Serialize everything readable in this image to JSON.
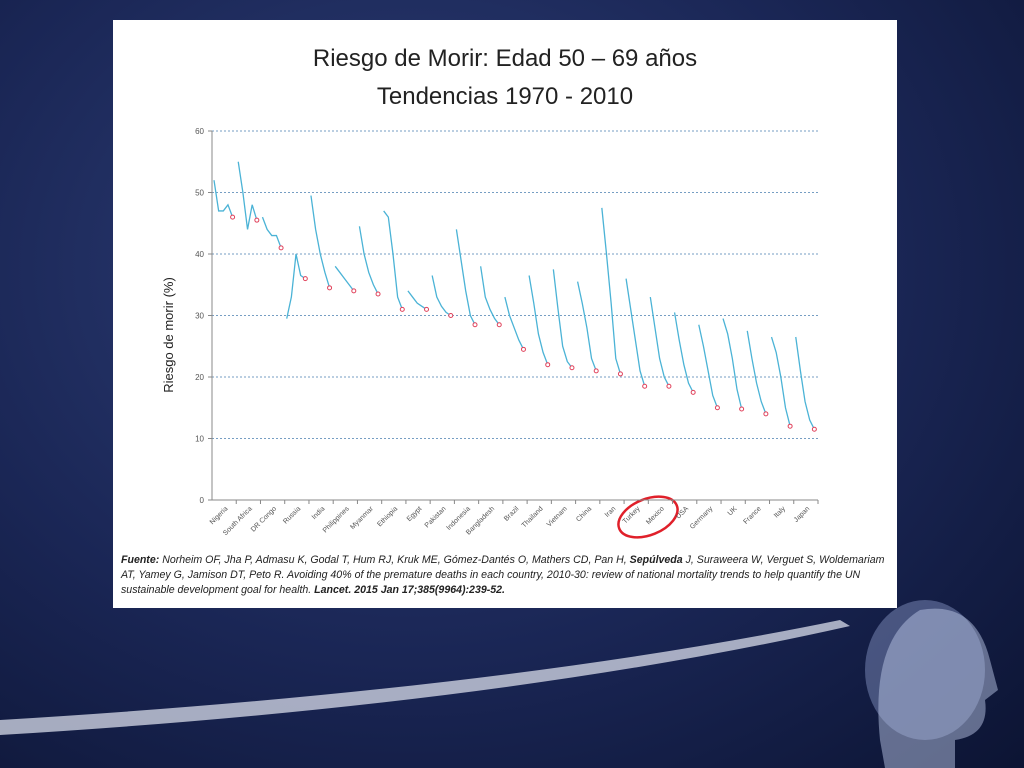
{
  "chart_data": {
    "type": "line",
    "title": "Riesgo de Morir: Edad 50 – 69 años",
    "subtitle": "Tendencias 1970 - 2010",
    "y_label": "Riesgo de morir (%)",
    "ylim": [
      0,
      60
    ],
    "yticks": [
      0,
      10,
      20,
      30,
      40,
      50,
      60
    ],
    "grid": true,
    "color": "#4bb3d6",
    "marker_color": "#e0405a",
    "categories": [
      "Nigeria",
      "South Africa",
      "DR Congo",
      "Russia",
      "India",
      "Philippines",
      "Myanmar",
      "Ethiopia",
      "Egypt",
      "Pakistan",
      "Indonesia",
      "Bangladesh",
      "Brazil",
      "Thailand",
      "Vietnam",
      "China",
      "Iran",
      "Turkey",
      "Mexico",
      "USA",
      "Germany",
      "UK",
      "France",
      "Italy",
      "Japan"
    ],
    "values": [
      [
        52,
        47,
        47,
        48,
        46
      ],
      [
        55,
        50,
        44,
        48,
        45.5
      ],
      [
        46,
        44,
        43,
        43,
        41
      ],
      [
        29.5,
        33,
        40,
        36.5,
        36
      ],
      [
        49.5,
        44,
        40,
        37,
        34.5
      ],
      [
        38,
        37,
        36,
        35,
        34
      ],
      [
        44.5,
        40,
        37,
        35,
        33.5
      ],
      [
        47,
        46,
        40,
        33,
        31
      ],
      [
        34,
        33,
        32,
        31.5,
        31
      ],
      [
        36.5,
        33,
        31.5,
        30.5,
        30
      ],
      [
        44,
        39,
        34,
        30,
        28.5
      ],
      [
        38,
        33,
        31,
        29.5,
        28.5
      ],
      [
        33,
        30,
        28,
        26,
        24.5
      ],
      [
        36.5,
        32,
        27,
        24,
        22
      ],
      [
        37.5,
        31,
        25,
        22.5,
        21.5
      ],
      [
        35.5,
        32,
        28,
        23,
        21
      ],
      [
        47.5,
        40,
        32,
        23,
        20.5
      ],
      [
        36,
        31,
        26,
        21,
        18.5
      ],
      [
        33,
        28,
        23,
        20,
        18.5
      ],
      [
        30.5,
        26,
        22,
        19,
        17.5
      ],
      [
        28.5,
        25,
        21,
        17,
        15
      ],
      [
        29.5,
        27,
        23,
        18,
        14.8
      ],
      [
        27.5,
        23,
        19,
        16,
        14
      ],
      [
        26.5,
        24,
        20,
        15,
        12
      ],
      [
        26.5,
        21,
        16,
        13,
        11.5
      ]
    ],
    "source": [
      {
        "text": "Fuente:",
        "bold": true
      },
      {
        "text": " Norheim OF, Jha P, Admasu K, Godal T, Hum RJ, Kruk ME, Gómez-Dantés O, Mathers CD, Pan H, ",
        "bold": false
      },
      {
        "text": "Sepúlveda",
        "bold": true
      },
      {
        "text": " J, Suraweera W, Verguet S, Woldemariam AT, Yamey G, Jamison DT, Peto R. Avoiding 40% of the premature deaths in each country, 2010-30: review of national mortality trends to help quantify the UN sustainable development goal for health. ",
        "bold": false
      },
      {
        "text": "Lancet. 2015 Jan 17;385(9964):239-52.",
        "bold": true
      }
    ]
  }
}
